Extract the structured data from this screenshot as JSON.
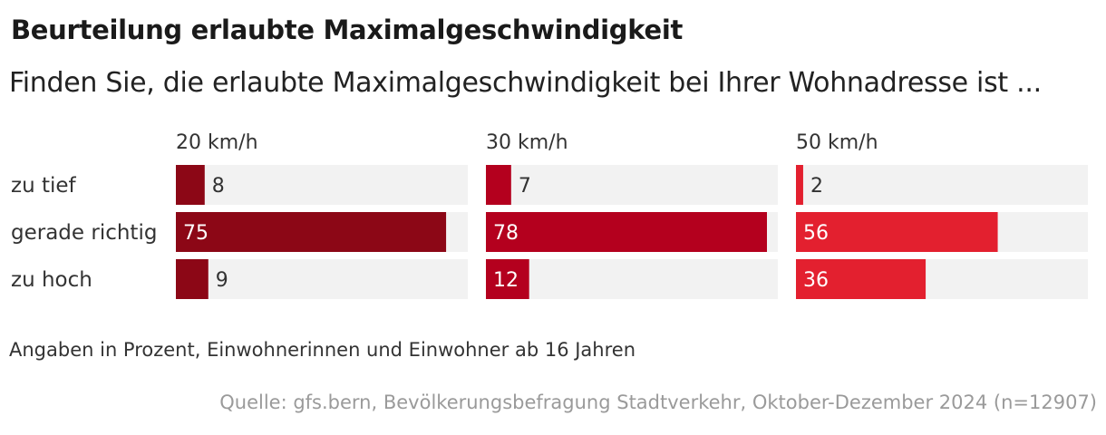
{
  "chart_data": {
    "type": "bar",
    "title": "Beurteilung erlaubte Maximalgeschwindigkeit",
    "subtitle": "Finden Sie, die erlaubte Maximalgeschwindigkeit bei Ihrer Wohnadresse ist ...",
    "categories": [
      "zu tief",
      "gerade richtig",
      "zu hoch"
    ],
    "xlim": [
      0,
      78
    ],
    "series": [
      {
        "name": "20 km/h",
        "values": [
          8,
          75,
          9
        ],
        "color": "#8c0716"
      },
      {
        "name": "30 km/h",
        "values": [
          7,
          78,
          12
        ],
        "color": "#b4001e"
      },
      {
        "name": "50 km/h",
        "values": [
          2,
          56,
          36
        ],
        "color": "#e3202f"
      }
    ],
    "track_color": "#f2f2f2",
    "note": "Angaben in Prozent, Einwohnerinnen und Einwohner ab 16 Jahren",
    "source": "Quelle: gfs.bern, Bevölkerungsbefragung Stadtverkehr, Oktober-Dezember 2024 (n=12907)"
  }
}
